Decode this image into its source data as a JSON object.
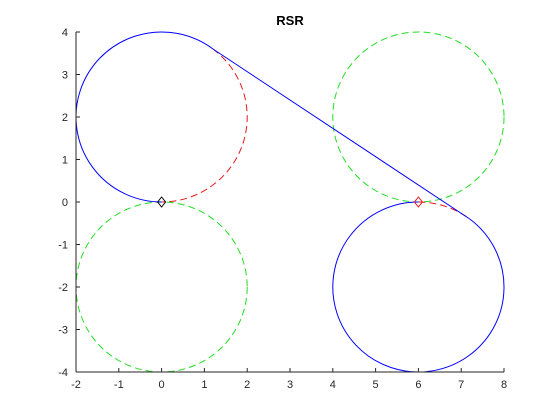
{
  "chart_data": {
    "type": "line",
    "title": "RSR",
    "xlabel": "",
    "ylabel": "",
    "xlim": [
      -2,
      8
    ],
    "ylim": [
      -4,
      4
    ],
    "xticks": [
      -2,
      -1,
      0,
      1,
      2,
      3,
      4,
      5,
      6,
      7,
      8
    ],
    "yticks": [
      -4,
      -3,
      -2,
      -1,
      0,
      1,
      2,
      3,
      4
    ],
    "grid": false,
    "colors": {
      "path": "#0000ff",
      "unused_turn": "#e31a1c",
      "opposite_circle": "#22dd22",
      "start_marker": "#000000",
      "goal_marker": "#e31a1c",
      "axes": "#262626"
    },
    "start_pose": {
      "x": 0,
      "y": 0
    },
    "goal_pose": {
      "x": 6,
      "y": 0
    },
    "circles": [
      {
        "role": "start-right-turn",
        "cx": 0,
        "cy": 2,
        "r": 2
      },
      {
        "role": "start-left-turn",
        "cx": 0,
        "cy": -2,
        "r": 2
      },
      {
        "role": "goal-right-turn",
        "cx": 6,
        "cy": -2,
        "r": 2
      },
      {
        "role": "goal-left-turn",
        "cx": 6,
        "cy": 2,
        "r": 2
      }
    ],
    "tangent_segment": {
      "x": [
        1.2,
        7.2
      ],
      "y": [
        3.6,
        -0.4
      ]
    }
  }
}
